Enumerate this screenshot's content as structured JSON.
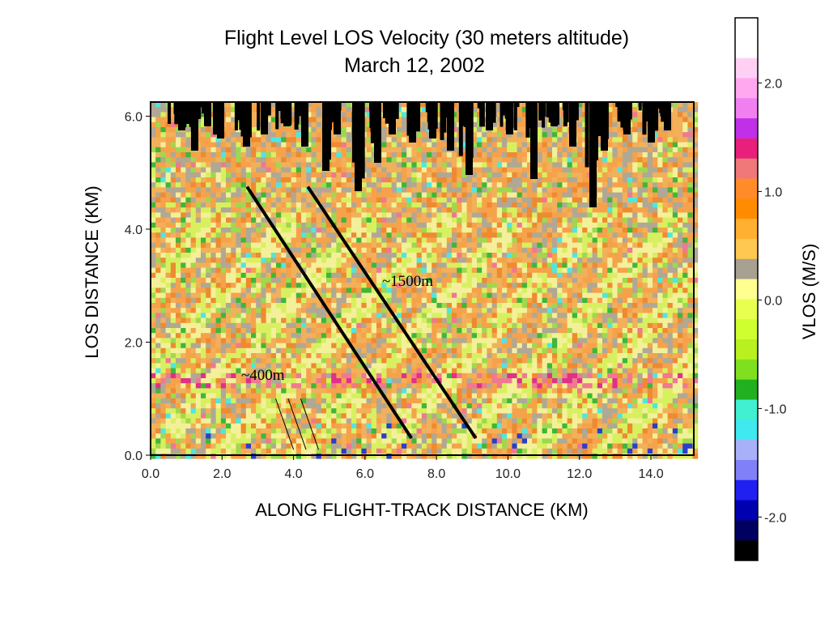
{
  "chart_data": {
    "type": "heatmap",
    "title": "Flight Level LOS Velocity (30 meters altitude)",
    "subtitle": "March 12, 2002",
    "xlabel": "ALONG FLIGHT-TRACK DISTANCE (KM)",
    "ylabel": "LOS DISTANCE (KM)",
    "xlim": [
      0,
      15.2
    ],
    "ylim": [
      0,
      6.25
    ],
    "x_ticks": [
      0,
      2,
      4,
      6,
      8,
      10,
      12,
      14
    ],
    "x_tick_labels": [
      "0.0",
      "2.0",
      "4.0",
      "6.0",
      "8.0",
      "10.0",
      "12.0",
      "14.0"
    ],
    "y_ticks": [
      0,
      2,
      4,
      6
    ],
    "y_tick_labels": [
      "0.0",
      "2.0",
      "4.0",
      "6.0"
    ],
    "colorbar": {
      "label": "VLOS (M/S)",
      "range": [
        -2.4,
        2.6
      ],
      "ticks": [
        2.0,
        1.0,
        0.0,
        -1.0,
        -2.0
      ],
      "tick_labels": [
        "2.0",
        "1.0",
        "0.0",
        "-1.0",
        "-2.0"
      ],
      "colors": [
        "#ffffff",
        "#ffffff",
        "#ffd0f4",
        "#ffa8f0",
        "#f080f0",
        "#c030e8",
        "#e8207c",
        "#f07878",
        "#ff8c28",
        "#ff8c00",
        "#ffb030",
        "#ffc850",
        "#a8a090",
        "#ffff90",
        "#e8ff50",
        "#d0ff30",
        "#b8f020",
        "#80e020",
        "#20b020",
        "#40f0d0",
        "#40e8f0",
        "#a8b0f8",
        "#8080f8",
        "#2020f0",
        "#0000b0",
        "#000060",
        "#000000"
      ]
    },
    "annotations": [
      {
        "text": "~1500m",
        "x": 8.4,
        "y": 3.0
      },
      {
        "text": "~400m",
        "x": 4.2,
        "y": 1.2
      }
    ],
    "bands": [
      {
        "name": "long-wave-1",
        "start": [
          2.7,
          4.75
        ],
        "end": [
          7.3,
          0.3
        ]
      },
      {
        "name": "long-wave-2",
        "start": [
          4.4,
          4.75
        ],
        "end": [
          9.1,
          0.3
        ]
      },
      {
        "name": "short-wave-1",
        "start": [
          3.5,
          1.0
        ],
        "end": [
          4.0,
          0.1
        ]
      },
      {
        "name": "short-wave-2",
        "start": [
          3.85,
          1.0
        ],
        "end": [
          4.35,
          0.1
        ]
      },
      {
        "name": "short-wave-3",
        "start": [
          4.2,
          1.0
        ],
        "end": [
          4.7,
          0.1
        ]
      }
    ],
    "grid": false,
    "legend": "colorbar-right"
  }
}
